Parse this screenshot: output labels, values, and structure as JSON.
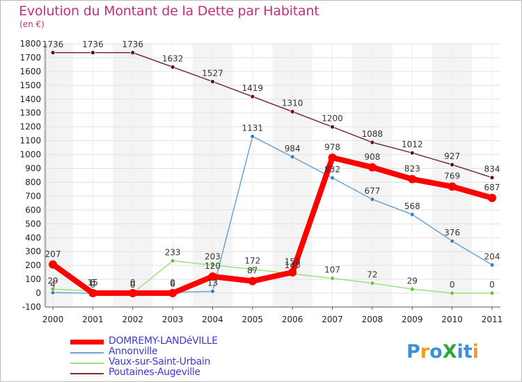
{
  "header": {
    "title": "Evolution du Montant de la Dette par Habitant",
    "subtitle": "(en €)"
  },
  "logo": {
    "text": "ProXiti"
  },
  "colors": {
    "title": "#c0307a",
    "grid": "#e2e2e2",
    "bg_band": "#e6e6e6"
  },
  "chart_data": {
    "type": "line",
    "x": [
      "2000",
      "2001",
      "2002",
      "2003",
      "2004",
      "2005",
      "2006",
      "2007",
      "2008",
      "2009",
      "2010",
      "2011"
    ],
    "ylim": [
      -100,
      1800
    ],
    "yticks": [
      -100,
      0,
      100,
      200,
      300,
      400,
      500,
      600,
      700,
      800,
      900,
      1000,
      1100,
      1200,
      1300,
      1400,
      1500,
      1600,
      1700,
      1800
    ],
    "grid": true,
    "legend_position": "bottom-left",
    "series": [
      {
        "name": "Poutaines-Augeville",
        "color": "#7a2e2e",
        "marker": "#5a1414",
        "width": 1.5,
        "values": [
          1736,
          1736,
          1736,
          1632,
          1527,
          1419,
          1310,
          1200,
          1088,
          1012,
          927,
          834
        ],
        "labels": [
          "1736",
          "1736",
          "1736",
          "1632",
          "1527",
          "1419",
          "1310",
          "1200",
          "1088",
          "1012",
          "927",
          "834"
        ]
      },
      {
        "name": "Annonville",
        "color": "#6aa4d4",
        "marker": "#3a7fc0",
        "width": 1.5,
        "values": [
          4,
          0,
          0,
          6,
          13,
          1131,
          984,
          832,
          677,
          568,
          376,
          204
        ],
        "labels": [
          "4",
          "0",
          "0",
          "6",
          "13",
          "1131",
          "984",
          "832",
          "677",
          "568",
          "376",
          "204"
        ]
      },
      {
        "name": "Vaux-sur-Saint-Urbain",
        "color": "#9be07a",
        "marker": "#6ac04a",
        "width": 1.5,
        "values": [
          29,
          15,
          0,
          233,
          203,
          172,
          140,
          107,
          72,
          29,
          0,
          0
        ],
        "labels": [
          "29",
          "15",
          "0",
          "233",
          "203",
          "172",
          "140",
          "107",
          "72",
          "29",
          "0",
          "0"
        ]
      },
      {
        "name": "DOMREMY-LANDéVILLE",
        "color": "#ff0000",
        "marker": "#ff0000",
        "width": 8,
        "values": [
          207,
          0,
          0,
          0,
          120,
          87,
          150,
          978,
          908,
          823,
          769,
          687
        ],
        "labels": [
          "207",
          "0",
          "0",
          "0",
          "120",
          "87",
          "150",
          "978",
          "908",
          "823",
          "769",
          "687"
        ]
      }
    ],
    "legend": [
      {
        "name": "DOMREMY-LANDéVILLE",
        "color": "#ff0000",
        "text_color": "#3a3ad0",
        "thick": true
      },
      {
        "name": "Annonville",
        "color": "#6aa4d4",
        "text_color": "#3a3ad0",
        "thick": false
      },
      {
        "name": "Vaux-sur-Saint-Urbain",
        "color": "#9be07a",
        "text_color": "#3a3ad0",
        "thick": false
      },
      {
        "name": "Poutaines-Augeville",
        "color": "#7a2e2e",
        "text_color": "#3a3ad0",
        "thick": false
      }
    ]
  }
}
